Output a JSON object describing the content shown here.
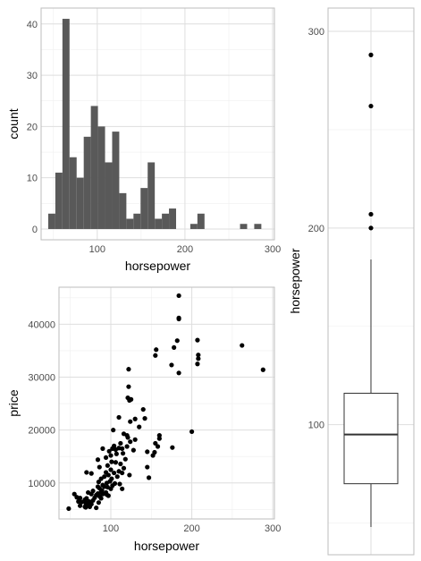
{
  "colors": {
    "bar_fill": "#595959",
    "point": "#000000",
    "grid_major": "#dedede",
    "grid_minor": "#efefef",
    "panel_border": "#bdbdbd",
    "text": "#4d4d4d"
  },
  "chart_data": [
    {
      "type": "bar",
      "subtype": "histogram",
      "xlabel": "horsepower",
      "ylabel": "count",
      "xlim": [
        36,
        302
      ],
      "ylim": [
        -2.1,
        43.1
      ],
      "xticks": [
        100,
        200,
        300
      ],
      "xtick_labels": [
        "100",
        "200",
        "300"
      ],
      "yticks": [
        0,
        10,
        20,
        30,
        40
      ],
      "ytick_labels": [
        "0",
        "10",
        "20",
        "30",
        "40"
      ],
      "bin_width": 8.1,
      "bin_start": 44.1,
      "values": [
        3,
        11,
        41,
        14,
        10,
        18,
        24,
        20,
        13,
        19,
        7,
        2,
        3,
        8,
        13,
        2,
        3,
        4,
        0,
        0,
        1,
        3,
        0,
        0,
        0,
        0,
        0,
        1,
        0,
        1
      ],
      "grid": true
    },
    {
      "type": "scatter",
      "xlabel": "horsepower",
      "ylabel": "price",
      "xlim": [
        36,
        302
      ],
      "ylim": [
        3200,
        47000
      ],
      "xticks": [
        100,
        200,
        300
      ],
      "xtick_labels": [
        "100",
        "200",
        "300"
      ],
      "yticks": [
        10000,
        20000,
        30000,
        40000
      ],
      "ytick_labels": [
        "10000",
        "20000",
        "30000",
        "40000"
      ],
      "points": [
        [
          48,
          5150
        ],
        [
          55,
          7900
        ],
        [
          58,
          7300
        ],
        [
          60,
          6500
        ],
        [
          62,
          7150
        ],
        [
          62,
          5700
        ],
        [
          64,
          6400
        ],
        [
          68,
          5500
        ],
        [
          68,
          6850
        ],
        [
          69,
          5400
        ],
        [
          69,
          6200
        ],
        [
          70,
          6000
        ],
        [
          70,
          7100
        ],
        [
          72,
          5700
        ],
        [
          72,
          8200
        ],
        [
          73,
          6500
        ],
        [
          74,
          5500
        ],
        [
          76,
          7900
        ],
        [
          76,
          6000
        ],
        [
          78,
          6700
        ],
        [
          78,
          8500
        ],
        [
          80,
          7200
        ],
        [
          82,
          7700
        ],
        [
          82,
          5300
        ],
        [
          84,
          9300
        ],
        [
          84,
          8000
        ],
        [
          85,
          10200
        ],
        [
          85,
          6300
        ],
        [
          86,
          7500
        ],
        [
          86,
          9000
        ],
        [
          88,
          8300
        ],
        [
          88,
          10800
        ],
        [
          88,
          7100
        ],
        [
          89,
          8600
        ],
        [
          90,
          7900
        ],
        [
          90,
          9600
        ],
        [
          92,
          9300
        ],
        [
          92,
          11200
        ],
        [
          94,
          8200
        ],
        [
          94,
          12000
        ],
        [
          95,
          7800
        ],
        [
          95,
          10000
        ],
        [
          96,
          13300
        ],
        [
          96,
          9200
        ],
        [
          97,
          11500
        ],
        [
          97,
          7600
        ],
        [
          98,
          16000
        ],
        [
          99,
          10300
        ],
        [
          100,
          12500
        ],
        [
          100,
          8900
        ],
        [
          101,
          14000
        ],
        [
          101,
          10800
        ],
        [
          102,
          16500
        ],
        [
          102,
          9500
        ],
        [
          104,
          11900
        ],
        [
          104,
          17000
        ],
        [
          105,
          9900
        ],
        [
          106,
          13900
        ],
        [
          107,
          15500
        ],
        [
          108,
          11200
        ],
        [
          110,
          12200
        ],
        [
          110,
          16600
        ],
        [
          111,
          9800
        ],
        [
          112,
          13600
        ],
        [
          112,
          17500
        ],
        [
          114,
          8900
        ],
        [
          114,
          11900
        ],
        [
          115,
          15600
        ],
        [
          116,
          12800
        ],
        [
          116,
          19300
        ],
        [
          118,
          14500
        ],
        [
          120,
          16900
        ],
        [
          121,
          18600
        ],
        [
          121,
          26100
        ],
        [
          122,
          28200
        ],
        [
          122,
          31500
        ],
        [
          123,
          11500
        ],
        [
          124,
          17800
        ],
        [
          124,
          21600
        ],
        [
          125,
          25800
        ],
        [
          128,
          16200
        ],
        [
          130,
          18200
        ],
        [
          130,
          22100
        ],
        [
          135,
          20600
        ],
        [
          140,
          23900
        ],
        [
          142,
          22200
        ],
        [
          145,
          15900
        ],
        [
          145,
          13000
        ],
        [
          147,
          11000
        ],
        [
          152,
          15200
        ],
        [
          154,
          15800
        ],
        [
          155,
          17500
        ],
        [
          155,
          34100
        ],
        [
          156,
          35200
        ],
        [
          158,
          16900
        ],
        [
          160,
          18400
        ],
        [
          160,
          19000
        ],
        [
          175,
          32300
        ],
        [
          176,
          16700
        ],
        [
          178,
          35600
        ],
        [
          182,
          36900
        ],
        [
          184,
          30800
        ],
        [
          184,
          41200
        ],
        [
          184,
          41000
        ],
        [
          184,
          45400
        ],
        [
          200,
          19700
        ],
        [
          207,
          37000
        ],
        [
          207,
          32500
        ],
        [
          208,
          34200
        ],
        [
          208,
          33500
        ],
        [
          262,
          36000
        ],
        [
          288,
          31400
        ],
        [
          110,
          22400
        ],
        [
          123,
          25600
        ],
        [
          103,
          20000
        ],
        [
          90,
          16500
        ],
        [
          70,
          12000
        ],
        [
          76,
          11800
        ],
        [
          84,
          14400
        ],
        [
          86,
          13000
        ],
        [
          94,
          14800
        ],
        [
          100,
          15200
        ],
        [
          106,
          16300
        ],
        [
          114,
          16500
        ],
        [
          120,
          19000
        ]
      ],
      "grid": true
    },
    {
      "type": "box",
      "ylabel": "horsepower",
      "xlabel": "",
      "ylim": [
        48,
        300
      ],
      "yticks": [
        100,
        200,
        300
      ],
      "ytick_labels": [
        "100",
        "200",
        "300"
      ],
      "stats": {
        "min": 48,
        "q1": 70,
        "median": 95,
        "q3": 116,
        "max": 184
      },
      "outliers": [
        200,
        207,
        262,
        288
      ],
      "grid": true
    }
  ]
}
